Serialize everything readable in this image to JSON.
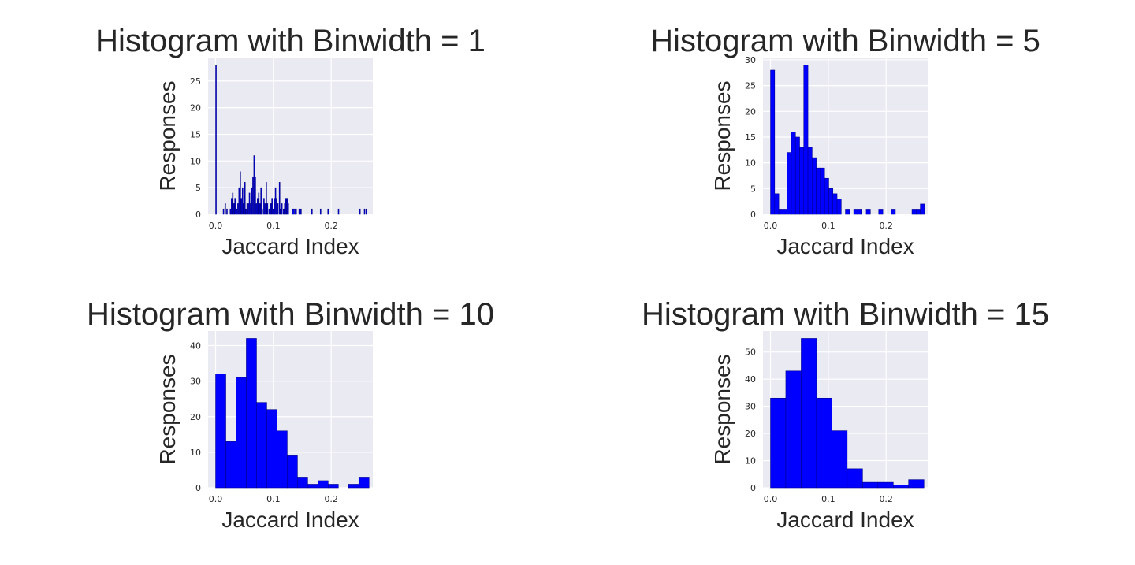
{
  "chart_data": [
    {
      "type": "bar",
      "title": "Histogram with Binwidth = 1",
      "xlabel": "Jaccard Index",
      "ylabel": "Responses",
      "xlim": [
        -0.013,
        0.272
      ],
      "ylim": [
        0,
        29.4
      ],
      "xticks": [
        0.0,
        0.1,
        0.2
      ],
      "xtick_labels": [
        "0.0",
        "0.1",
        "0.2"
      ],
      "yticks": [
        0,
        5,
        10,
        15,
        20,
        25
      ],
      "ytick_labels": [
        "0",
        "5",
        "10",
        "15",
        "20",
        "25"
      ],
      "grid": true,
      "bar_color": "#0000ff",
      "edge_color": "#00008b",
      "bins": [
        {
          "x0": 0.0,
          "x1": 0.001,
          "count": 28
        },
        {
          "x0": 0.013,
          "x1": 0.014,
          "count": 1
        },
        {
          "x0": 0.016,
          "x1": 0.017,
          "count": 2
        },
        {
          "x0": 0.019,
          "x1": 0.02,
          "count": 1
        },
        {
          "x0": 0.025,
          "x1": 0.026,
          "count": 1
        },
        {
          "x0": 0.027,
          "x1": 0.028,
          "count": 3
        },
        {
          "x0": 0.029,
          "x1": 0.03,
          "count": 4
        },
        {
          "x0": 0.031,
          "x1": 0.032,
          "count": 2
        },
        {
          "x0": 0.033,
          "x1": 0.034,
          "count": 3
        },
        {
          "x0": 0.036,
          "x1": 0.037,
          "count": 1
        },
        {
          "x0": 0.038,
          "x1": 0.039,
          "count": 2
        },
        {
          "x0": 0.04,
          "x1": 0.041,
          "count": 5
        },
        {
          "x0": 0.042,
          "x1": 0.043,
          "count": 8
        },
        {
          "x0": 0.044,
          "x1": 0.045,
          "count": 3
        },
        {
          "x0": 0.046,
          "x1": 0.047,
          "count": 5
        },
        {
          "x0": 0.048,
          "x1": 0.049,
          "count": 2
        },
        {
          "x0": 0.05,
          "x1": 0.051,
          "count": 6
        },
        {
          "x0": 0.052,
          "x1": 0.053,
          "count": 1
        },
        {
          "x0": 0.054,
          "x1": 0.055,
          "count": 2
        },
        {
          "x0": 0.056,
          "x1": 0.057,
          "count": 2
        },
        {
          "x0": 0.058,
          "x1": 0.059,
          "count": 4
        },
        {
          "x0": 0.06,
          "x1": 0.061,
          "count": 2
        },
        {
          "x0": 0.062,
          "x1": 0.063,
          "count": 5
        },
        {
          "x0": 0.064,
          "x1": 0.065,
          "count": 7
        },
        {
          "x0": 0.066,
          "x1": 0.067,
          "count": 11
        },
        {
          "x0": 0.068,
          "x1": 0.069,
          "count": 7
        },
        {
          "x0": 0.07,
          "x1": 0.071,
          "count": 2
        },
        {
          "x0": 0.072,
          "x1": 0.073,
          "count": 3
        },
        {
          "x0": 0.074,
          "x1": 0.075,
          "count": 4
        },
        {
          "x0": 0.076,
          "x1": 0.077,
          "count": 2
        },
        {
          "x0": 0.078,
          "x1": 0.079,
          "count": 5
        },
        {
          "x0": 0.08,
          "x1": 0.081,
          "count": 1
        },
        {
          "x0": 0.083,
          "x1": 0.084,
          "count": 3
        },
        {
          "x0": 0.085,
          "x1": 0.086,
          "count": 2
        },
        {
          "x0": 0.087,
          "x1": 0.088,
          "count": 6
        },
        {
          "x0": 0.089,
          "x1": 0.09,
          "count": 2
        },
        {
          "x0": 0.092,
          "x1": 0.093,
          "count": 1
        },
        {
          "x0": 0.095,
          "x1": 0.096,
          "count": 2
        },
        {
          "x0": 0.097,
          "x1": 0.098,
          "count": 3
        },
        {
          "x0": 0.099,
          "x1": 0.1,
          "count": 1
        },
        {
          "x0": 0.101,
          "x1": 0.102,
          "count": 3
        },
        {
          "x0": 0.103,
          "x1": 0.104,
          "count": 5
        },
        {
          "x0": 0.105,
          "x1": 0.106,
          "count": 3
        },
        {
          "x0": 0.107,
          "x1": 0.108,
          "count": 2
        },
        {
          "x0": 0.11,
          "x1": 0.111,
          "count": 6
        },
        {
          "x0": 0.112,
          "x1": 0.113,
          "count": 1
        },
        {
          "x0": 0.114,
          "x1": 0.115,
          "count": 2
        },
        {
          "x0": 0.117,
          "x1": 0.118,
          "count": 1
        },
        {
          "x0": 0.119,
          "x1": 0.12,
          "count": 2
        },
        {
          "x0": 0.121,
          "x1": 0.122,
          "count": 3
        },
        {
          "x0": 0.123,
          "x1": 0.124,
          "count": 3
        },
        {
          "x0": 0.125,
          "x1": 0.126,
          "count": 2
        },
        {
          "x0": 0.133,
          "x1": 0.136,
          "count": 1
        },
        {
          "x0": 0.137,
          "x1": 0.14,
          "count": 1
        },
        {
          "x0": 0.144,
          "x1": 0.145,
          "count": 1
        },
        {
          "x0": 0.147,
          "x1": 0.148,
          "count": 1
        },
        {
          "x0": 0.166,
          "x1": 0.167,
          "count": 1
        },
        {
          "x0": 0.181,
          "x1": 0.182,
          "count": 1
        },
        {
          "x0": 0.194,
          "x1": 0.195,
          "count": 1
        },
        {
          "x0": 0.212,
          "x1": 0.213,
          "count": 1
        },
        {
          "x0": 0.249,
          "x1": 0.25,
          "count": 1
        },
        {
          "x0": 0.257,
          "x1": 0.258,
          "count": 1
        },
        {
          "x0": 0.26,
          "x1": 0.261,
          "count": 1
        }
      ]
    },
    {
      "type": "bar",
      "title": "Histogram with Binwidth = 5",
      "xlabel": "Jaccard Index",
      "ylabel": "Responses",
      "xlim": [
        -0.013,
        0.272
      ],
      "ylim": [
        0,
        30.45
      ],
      "xticks": [
        0.0,
        0.1,
        0.2
      ],
      "xtick_labels": [
        "0.0",
        "0.1",
        "0.2"
      ],
      "yticks": [
        0,
        5,
        10,
        15,
        20,
        25,
        30
      ],
      "ytick_labels": [
        "0",
        "5",
        "10",
        "15",
        "20",
        "25",
        "30"
      ],
      "grid": true,
      "bar_color": "#0000ff",
      "edge_color": "#00008b",
      "bins": [
        {
          "x0": 0.0,
          "x1": 0.0072,
          "count": 28
        },
        {
          "x0": 0.0072,
          "x1": 0.0144,
          "count": 4
        },
        {
          "x0": 0.0144,
          "x1": 0.0216,
          "count": 1
        },
        {
          "x0": 0.0216,
          "x1": 0.0288,
          "count": 1
        },
        {
          "x0": 0.0288,
          "x1": 0.036,
          "count": 12
        },
        {
          "x0": 0.036,
          "x1": 0.0432,
          "count": 16
        },
        {
          "x0": 0.0432,
          "x1": 0.0504,
          "count": 15
        },
        {
          "x0": 0.0504,
          "x1": 0.0576,
          "count": 13
        },
        {
          "x0": 0.0576,
          "x1": 0.0648,
          "count": 29
        },
        {
          "x0": 0.0648,
          "x1": 0.072,
          "count": 13
        },
        {
          "x0": 0.072,
          "x1": 0.0792,
          "count": 11
        },
        {
          "x0": 0.0792,
          "x1": 0.0864,
          "count": 9
        },
        {
          "x0": 0.0864,
          "x1": 0.0936,
          "count": 9
        },
        {
          "x0": 0.0936,
          "x1": 0.1008,
          "count": 7
        },
        {
          "x0": 0.1008,
          "x1": 0.108,
          "count": 5
        },
        {
          "x0": 0.108,
          "x1": 0.1152,
          "count": 4
        },
        {
          "x0": 0.1152,
          "x1": 0.1224,
          "count": 3
        },
        {
          "x0": 0.1224,
          "x1": 0.1296,
          "count": 0
        },
        {
          "x0": 0.1296,
          "x1": 0.1368,
          "count": 1
        },
        {
          "x0": 0.1368,
          "x1": 0.144,
          "count": 0
        },
        {
          "x0": 0.144,
          "x1": 0.1512,
          "count": 1
        },
        {
          "x0": 0.1512,
          "x1": 0.1584,
          "count": 1
        },
        {
          "x0": 0.1584,
          "x1": 0.1656,
          "count": 0
        },
        {
          "x0": 0.1656,
          "x1": 0.1728,
          "count": 1
        },
        {
          "x0": 0.1728,
          "x1": 0.18,
          "count": 0
        },
        {
          "x0": 0.18,
          "x1": 0.1872,
          "count": 0
        },
        {
          "x0": 0.1872,
          "x1": 0.1944,
          "count": 1
        },
        {
          "x0": 0.1944,
          "x1": 0.2016,
          "count": 0
        },
        {
          "x0": 0.2016,
          "x1": 0.2088,
          "count": 0
        },
        {
          "x0": 0.2088,
          "x1": 0.216,
          "count": 1
        },
        {
          "x0": 0.216,
          "x1": 0.2232,
          "count": 0
        },
        {
          "x0": 0.2232,
          "x1": 0.2304,
          "count": 0
        },
        {
          "x0": 0.2304,
          "x1": 0.2376,
          "count": 0
        },
        {
          "x0": 0.2376,
          "x1": 0.2448,
          "count": 0
        },
        {
          "x0": 0.2448,
          "x1": 0.252,
          "count": 1
        },
        {
          "x0": 0.252,
          "x1": 0.2592,
          "count": 1
        },
        {
          "x0": 0.2592,
          "x1": 0.2664,
          "count": 2
        }
      ]
    },
    {
      "type": "bar",
      "title": "Histogram with Binwidth = 10",
      "xlabel": "Jaccard Index",
      "ylabel": "Responses",
      "xlim": [
        -0.013,
        0.272
      ],
      "ylim": [
        0,
        44.1
      ],
      "xticks": [
        0.0,
        0.1,
        0.2
      ],
      "xtick_labels": [
        "0.0",
        "0.1",
        "0.2"
      ],
      "yticks": [
        0,
        10,
        20,
        30,
        40
      ],
      "ytick_labels": [
        "0",
        "10",
        "20",
        "30",
        "40"
      ],
      "grid": true,
      "bar_color": "#0000ff",
      "edge_color": "#00008b",
      "bins": [
        {
          "x0": 0.0,
          "x1": 0.0177,
          "count": 32
        },
        {
          "x0": 0.0177,
          "x1": 0.0354,
          "count": 13
        },
        {
          "x0": 0.0354,
          "x1": 0.0531,
          "count": 31
        },
        {
          "x0": 0.0531,
          "x1": 0.0708,
          "count": 42
        },
        {
          "x0": 0.0708,
          "x1": 0.0885,
          "count": 24
        },
        {
          "x0": 0.0885,
          "x1": 0.1062,
          "count": 22
        },
        {
          "x0": 0.1062,
          "x1": 0.1239,
          "count": 16
        },
        {
          "x0": 0.1239,
          "x1": 0.1416,
          "count": 9
        },
        {
          "x0": 0.1416,
          "x1": 0.1593,
          "count": 3
        },
        {
          "x0": 0.1593,
          "x1": 0.177,
          "count": 1
        },
        {
          "x0": 0.177,
          "x1": 0.1947,
          "count": 2
        },
        {
          "x0": 0.1947,
          "x1": 0.2124,
          "count": 1
        },
        {
          "x0": 0.2124,
          "x1": 0.2301,
          "count": 0
        },
        {
          "x0": 0.2301,
          "x1": 0.2478,
          "count": 1
        },
        {
          "x0": 0.2478,
          "x1": 0.2655,
          "count": 3
        }
      ]
    },
    {
      "type": "bar",
      "title": "Histogram with Binwidth = 15",
      "xlabel": "Jaccard Index",
      "ylabel": "Responses",
      "xlim": [
        -0.013,
        0.272
      ],
      "ylim": [
        0,
        57.75
      ],
      "xticks": [
        0.0,
        0.1,
        0.2
      ],
      "xtick_labels": [
        "0.0",
        "0.1",
        "0.2"
      ],
      "yticks": [
        0,
        10,
        20,
        30,
        40,
        50
      ],
      "ytick_labels": [
        "0",
        "10",
        "20",
        "30",
        "40",
        "50"
      ],
      "grid": true,
      "bar_color": "#0000ff",
      "edge_color": "#00008b",
      "bins": [
        {
          "x0": 0.0,
          "x1": 0.0265,
          "count": 33
        },
        {
          "x0": 0.0265,
          "x1": 0.0531,
          "count": 43
        },
        {
          "x0": 0.0531,
          "x1": 0.0796,
          "count": 55
        },
        {
          "x0": 0.0796,
          "x1": 0.1062,
          "count": 33
        },
        {
          "x0": 0.1062,
          "x1": 0.1327,
          "count": 21
        },
        {
          "x0": 0.1327,
          "x1": 0.1593,
          "count": 7
        },
        {
          "x0": 0.1593,
          "x1": 0.1858,
          "count": 2
        },
        {
          "x0": 0.1858,
          "x1": 0.2124,
          "count": 2
        },
        {
          "x0": 0.2124,
          "x1": 0.2389,
          "count": 1
        },
        {
          "x0": 0.2389,
          "x1": 0.2655,
          "count": 3
        }
      ]
    }
  ]
}
